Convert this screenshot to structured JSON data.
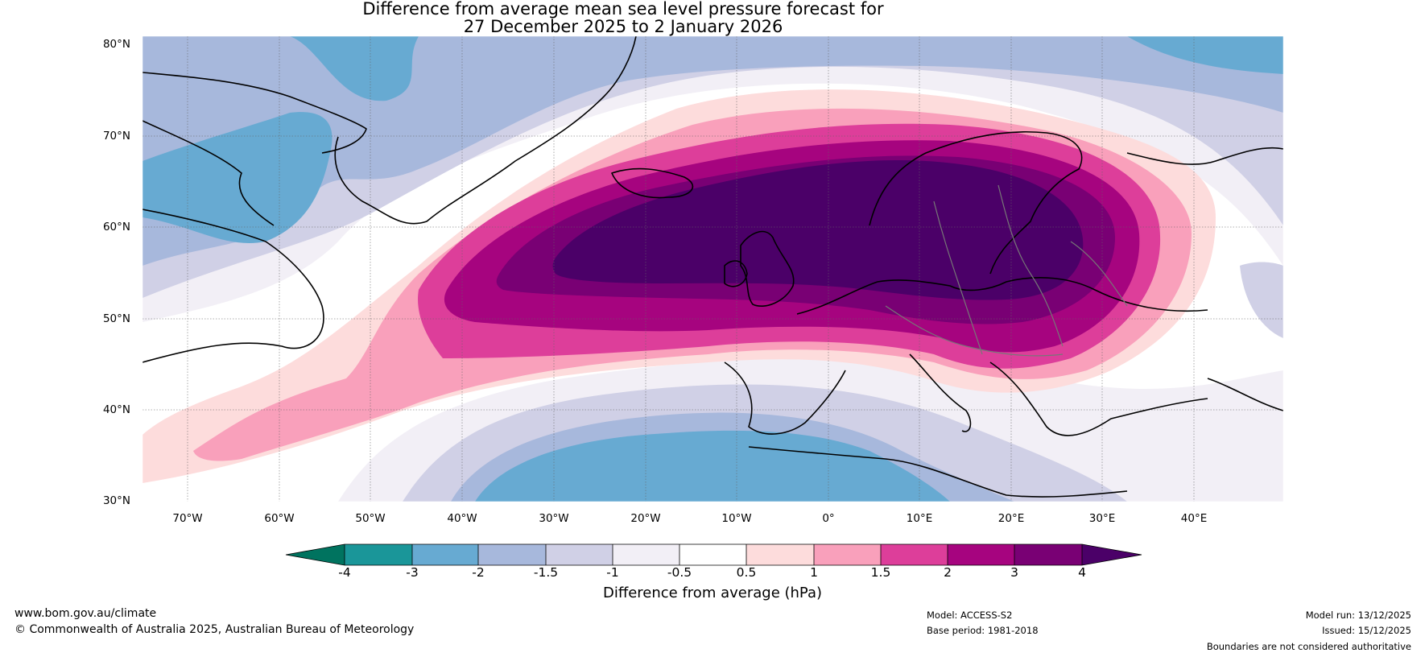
{
  "title_line1": "Difference from average mean sea level pressure forecast for",
  "title_line2": "27 December 2025 to 2 January 2026",
  "lat_labels": [
    "80°N",
    "70°N",
    "60°N",
    "50°N",
    "40°N",
    "30°N"
  ],
  "lon_labels": [
    "70°W",
    "60°W",
    "50°W",
    "40°W",
    "30°W",
    "20°W",
    "10°W",
    "0°",
    "10°E",
    "20°E",
    "30°E",
    "40°E"
  ],
  "colorbar": {
    "label": "Difference from average (hPa)",
    "ticks": [
      "-4",
      "-3",
      "-2",
      "-1.5",
      "-1",
      "-0.5",
      "0.5",
      "1",
      "1.5",
      "2",
      "3",
      "4"
    ],
    "colors": [
      "#00735f",
      "#1a9699",
      "#67aad2",
      "#a7b8dc",
      "#d0d0e6",
      "#f2eff6",
      "#ffffff",
      "#fddcdc",
      "#f9a0bb",
      "#dd3e9a",
      "#a6047f",
      "#790074",
      "#4b0068"
    ]
  },
  "footer": {
    "website": "www.bom.gov.au/climate",
    "copyright": "© Commonwealth of Australia 2025, Australian Bureau of Meteorology",
    "model": "Model: ACCESS-S2",
    "base_period": "Base period: 1981-2018",
    "model_run": "Model run: 13/12/2025",
    "issued": "Issued: 15/12/2025",
    "disclaimer": "Boundaries are not considered authoritative"
  }
}
